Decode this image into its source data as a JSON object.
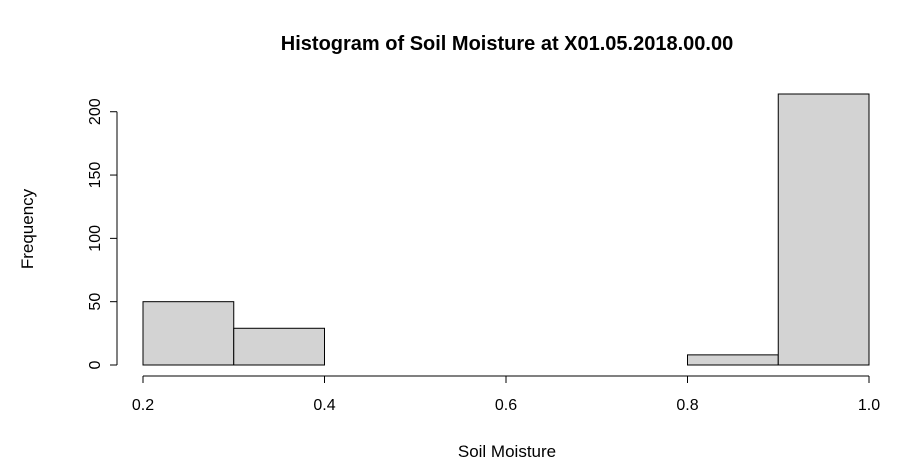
{
  "chart_data": {
    "type": "bar",
    "title": "Histogram of Soil Moisture at X01.05.2018.00.00",
    "xlabel": "Soil Moisture",
    "ylabel": "Frequency",
    "bins": [
      {
        "start": 0.2,
        "end": 0.3,
        "count": 50
      },
      {
        "start": 0.3,
        "end": 0.4,
        "count": 29
      },
      {
        "start": 0.4,
        "end": 0.5,
        "count": 0
      },
      {
        "start": 0.5,
        "end": 0.6,
        "count": 0
      },
      {
        "start": 0.6,
        "end": 0.7,
        "count": 0
      },
      {
        "start": 0.7,
        "end": 0.8,
        "count": 0
      },
      {
        "start": 0.8,
        "end": 0.9,
        "count": 8
      },
      {
        "start": 0.9,
        "end": 1.0,
        "count": 214
      }
    ],
    "x_ticks": [
      "0.2",
      "0.4",
      "0.6",
      "0.8",
      "1.0"
    ],
    "y_ticks": [
      "0",
      "50",
      "100",
      "150",
      "200"
    ],
    "xlim": [
      0.2,
      1.0
    ],
    "ylim": [
      0,
      214
    ],
    "grid": false,
    "bar_color": "#d3d3d3",
    "edge_color": "#000000"
  }
}
